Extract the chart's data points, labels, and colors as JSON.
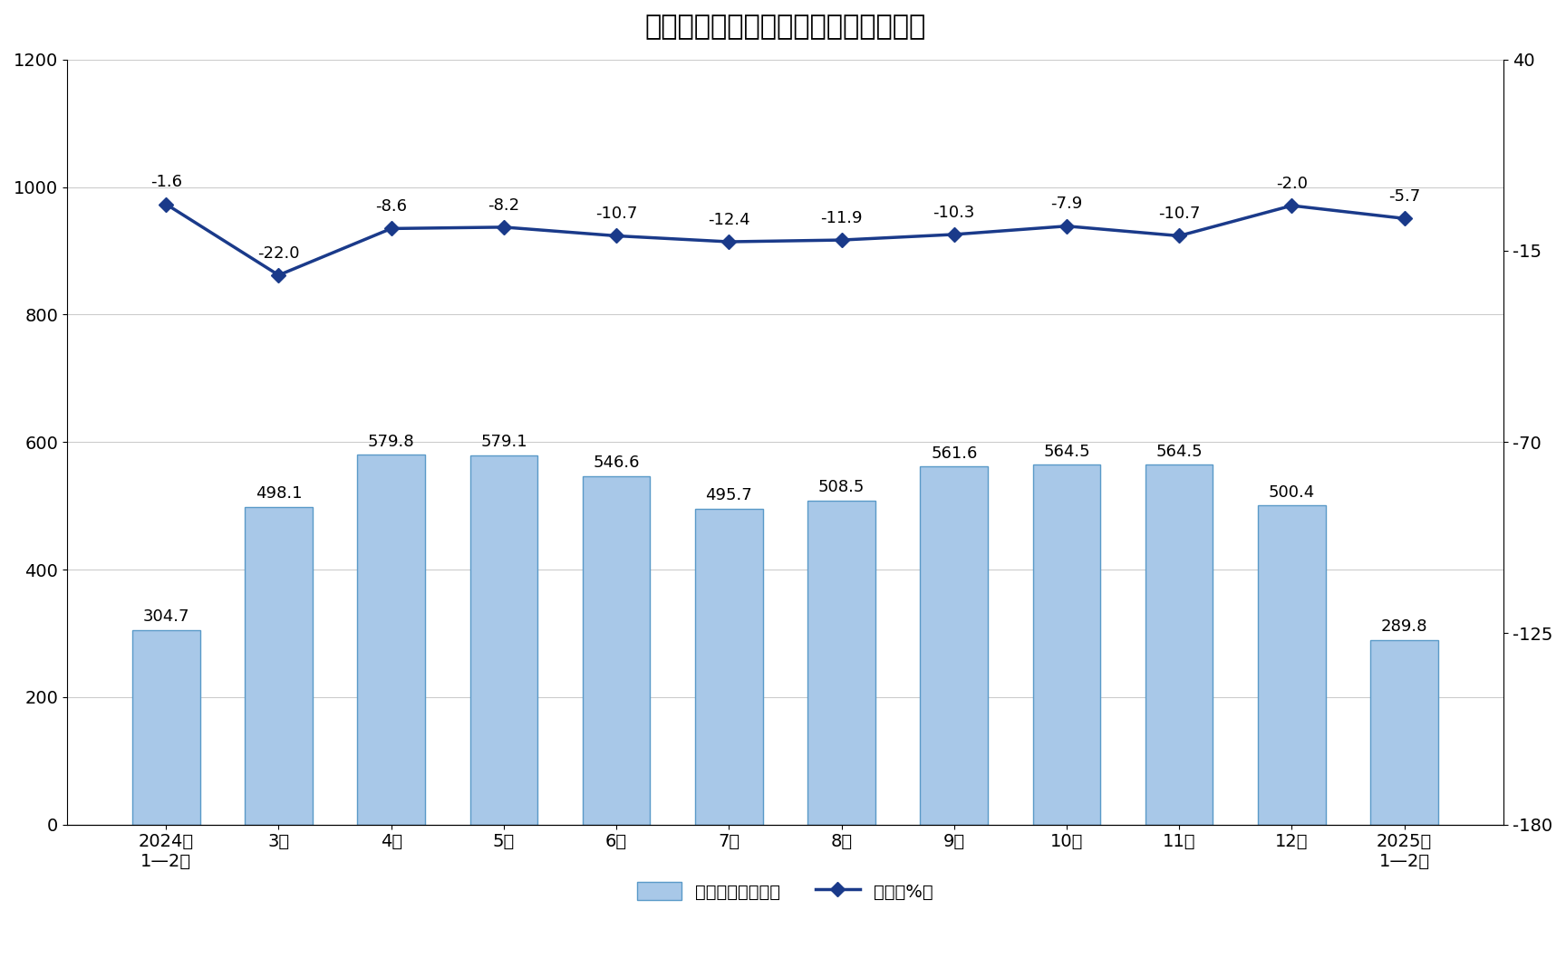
{
  "title": "规模以上工业水泥同比增速及日均产量",
  "categories": [
    "2024年\n1—2月",
    "3月",
    "4月",
    "5月",
    "6月",
    "7月",
    "8月",
    "9月",
    "10月",
    "11月",
    "12月",
    "2025年\n1—2月"
  ],
  "bar_values": [
    304.7,
    498.1,
    579.8,
    579.1,
    546.6,
    495.7,
    508.5,
    561.6,
    564.5,
    564.5,
    500.4,
    289.8
  ],
  "line_values": [
    -1.6,
    -22.0,
    -8.6,
    -8.2,
    -10.7,
    -12.4,
    -11.9,
    -10.3,
    -7.9,
    -10.7,
    -2.0,
    -5.7
  ],
  "bar_color": "#a8c8e8",
  "bar_edge_color": "#5a9ac8",
  "line_color": "#1a3a8a",
  "line_marker": "D",
  "left_ylim": [
    0,
    1200
  ],
  "left_yticks": [
    0,
    200,
    400,
    600,
    800,
    1000,
    1200
  ],
  "right_ylim": [
    -180,
    40
  ],
  "right_yticks": [
    -180,
    -125,
    -70,
    -15,
    40
  ],
  "legend_bar_label": "日均产量（万吨）",
  "legend_line_label": "增速（%）",
  "title_fontsize": 22,
  "tick_fontsize": 14,
  "label_fontsize": 13,
  "background_color": "#ffffff"
}
